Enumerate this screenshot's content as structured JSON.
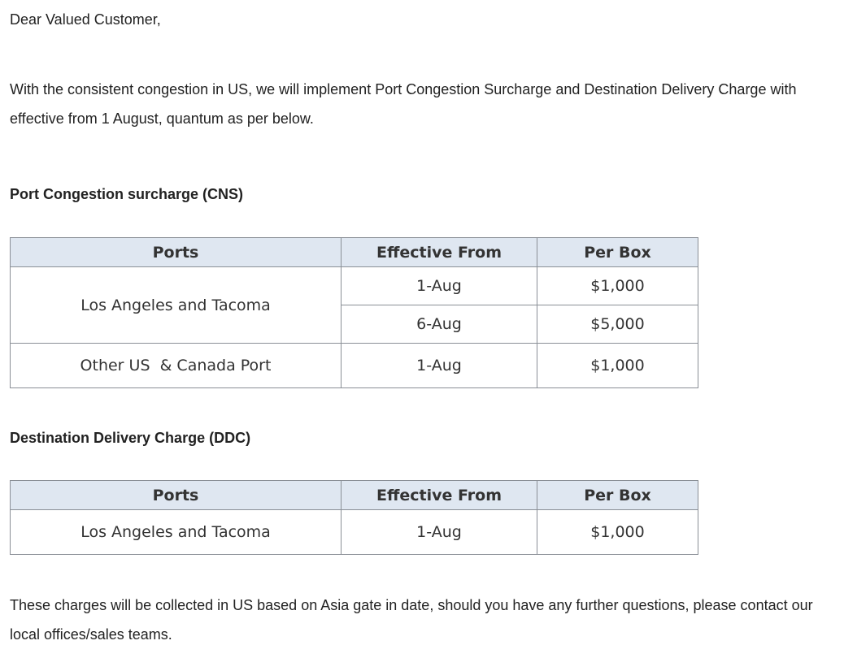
{
  "greeting": "Dear Valued Customer,",
  "intro": "With the consistent congestion in US, we will implement Port Congestion Surcharge and Destination Delivery Charge with effective from 1 August, quantum as per below.",
  "cns": {
    "heading": "Port Congestion surcharge (CNS)",
    "headers": [
      "Ports",
      "Effective From",
      "Per Box"
    ],
    "rows": [
      {
        "port": "Los Angeles and Tacoma",
        "entries": [
          {
            "date": "1-Aug",
            "amount": "$1,000"
          },
          {
            "date": "6-Aug",
            "amount": "$5,000"
          }
        ]
      },
      {
        "port": "Other US  & Canada Port",
        "entries": [
          {
            "date": "1-Aug",
            "amount": "$1,000"
          }
        ]
      }
    ]
  },
  "ddc": {
    "heading": "Destination Delivery Charge (DDC)",
    "headers": [
      "Ports",
      "Effective From",
      "Per Box"
    ],
    "rows": [
      {
        "port": "Los Angeles and Tacoma",
        "date": "1-Aug",
        "amount": "$1,000"
      }
    ]
  },
  "closing": "These charges will be collected in US based on Asia gate in date, should you have any further questions, please contact our local offices/sales teams.",
  "colors": {
    "header_bg": "#dfe7f1",
    "border": "#8a8f96"
  }
}
